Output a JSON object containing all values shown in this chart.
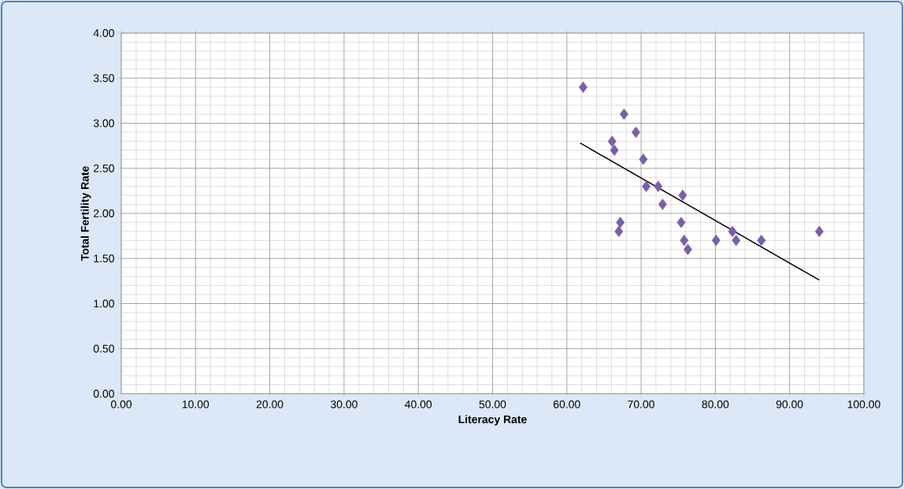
{
  "chart_data": {
    "type": "scatter",
    "xlabel": "Literacy Rate",
    "ylabel": "Total Fertility Rate",
    "xlim": [
      0,
      100
    ],
    "ylim": [
      0,
      4
    ],
    "xticks": [
      {
        "value": 0,
        "label": "0.00"
      },
      {
        "value": 10,
        "label": "10.00"
      },
      {
        "value": 20,
        "label": "20.00"
      },
      {
        "value": 30,
        "label": "30.00"
      },
      {
        "value": 40,
        "label": "40.00"
      },
      {
        "value": 50,
        "label": "50.00"
      },
      {
        "value": 60,
        "label": "60.00"
      },
      {
        "value": 70,
        "label": "70.00"
      },
      {
        "value": 80,
        "label": "80.00"
      },
      {
        "value": 90,
        "label": "90.00"
      },
      {
        "value": 100,
        "label": "100.00"
      }
    ],
    "yticks": [
      {
        "value": 0,
        "label": "0.00"
      },
      {
        "value": 0.5,
        "label": "0.50"
      },
      {
        "value": 1,
        "label": "1.00"
      },
      {
        "value": 1.5,
        "label": "1.50"
      },
      {
        "value": 2,
        "label": "2.00"
      },
      {
        "value": 2.5,
        "label": "2.50"
      },
      {
        "value": 3,
        "label": "3.00"
      },
      {
        "value": 3.5,
        "label": "3.50"
      },
      {
        "value": 4,
        "label": "4.00"
      }
    ],
    "grid": true,
    "marker": "diamond",
    "series": [
      {
        "color": "#7b5ea7",
        "x": [
          62.2,
          67.7,
          69.3,
          66.1,
          66.4,
          70.3,
          70.7,
          72.3,
          72.9,
          75.6,
          67.2,
          67.0,
          75.4,
          75.8,
          76.3,
          80.1,
          82.3,
          82.8,
          86.2,
          94.0
        ],
        "values": [
          3.4,
          3.1,
          2.9,
          2.8,
          2.7,
          2.6,
          2.3,
          2.3,
          2.1,
          2.2,
          1.9,
          1.8,
          1.9,
          1.7,
          1.6,
          1.7,
          1.8,
          1.7,
          1.7,
          1.8
        ]
      },
      {
        "type": "line",
        "color": "#000000",
        "marker": "none",
        "x": [
          61.8,
          94.0
        ],
        "values": [
          2.78,
          1.26
        ]
      }
    ]
  }
}
